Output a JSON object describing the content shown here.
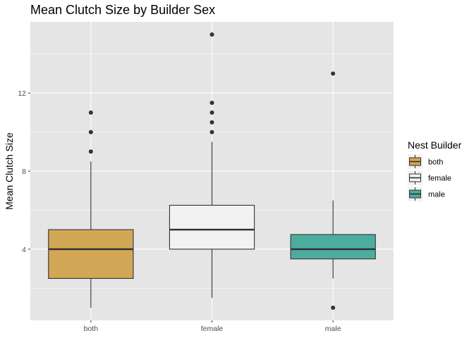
{
  "chart_data": {
    "type": "box",
    "title": "Mean Clutch Size by Builder Sex",
    "xlabel": "",
    "ylabel": "Mean Clutch Size",
    "categories": [
      "both",
      "female",
      "male"
    ],
    "yticks": [
      4,
      8,
      12
    ],
    "ylim": [
      0.35,
      15.65
    ],
    "grid": true,
    "legend": {
      "title": "Nest Builder",
      "position": "right",
      "entries": [
        "both",
        "female",
        "male"
      ]
    },
    "colors": {
      "both": "#d2a755",
      "female": "#f2f2f2",
      "male": "#4cad9f",
      "panel": "#e5e5e5",
      "grid": "#ffffff",
      "outline": "#333333"
    },
    "boxes": [
      {
        "category": "both",
        "min": 1.0,
        "q1": 2.5,
        "median": 4.0,
        "q3": 5.0,
        "max": 8.5,
        "outliers": [
          9.0,
          10.0,
          11.0
        ]
      },
      {
        "category": "female",
        "min": 1.5,
        "q1": 4.0,
        "median": 5.0,
        "q3": 6.25,
        "max": 9.5,
        "outliers": [
          10.0,
          10.5,
          11.0,
          11.5,
          15.0
        ]
      },
      {
        "category": "male",
        "min": 2.5,
        "q1": 3.5,
        "median": 4.0,
        "q3": 4.75,
        "max": 6.5,
        "outliers": [
          1.0,
          13.0
        ]
      }
    ]
  }
}
